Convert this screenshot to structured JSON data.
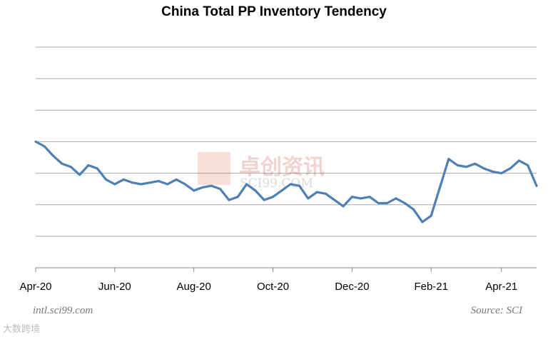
{
  "chart_data": {
    "type": "line",
    "title": "China Total PP Inventory Tendency",
    "xlabel": "",
    "ylabel": "",
    "ylim": [
      0,
      7
    ],
    "grid": true,
    "y_tick_labels_shown": false,
    "x_tick_labels": [
      "Apr-20",
      "Jun-20",
      "Aug-20",
      "Oct-20",
      "Dec-20",
      "Feb-21",
      "Apr-21"
    ],
    "x_tick_index": [
      0,
      9,
      18,
      27,
      36,
      45,
      53
    ],
    "series": [
      {
        "color": "#4e7fb5",
        "values": [
          4.0,
          3.85,
          3.55,
          3.3,
          3.2,
          2.95,
          3.25,
          3.15,
          2.8,
          2.65,
          2.8,
          2.7,
          2.65,
          2.7,
          2.75,
          2.65,
          2.8,
          2.65,
          2.45,
          2.55,
          2.6,
          2.5,
          2.15,
          2.25,
          2.65,
          2.45,
          2.15,
          2.25,
          2.45,
          2.65,
          2.6,
          2.2,
          2.4,
          2.35,
          2.15,
          1.95,
          2.25,
          2.2,
          2.25,
          2.05,
          2.05,
          2.2,
          2.05,
          1.85,
          1.45,
          1.65,
          2.55,
          3.45,
          3.25,
          3.2,
          3.3,
          3.15,
          3.05,
          3.0,
          3.15,
          3.4,
          3.25,
          2.6
        ]
      }
    ]
  },
  "watermark": {
    "cn": "卓创资讯",
    "en": "SCI99.COM"
  },
  "footer": {
    "left": "intl.sci99.com",
    "right": "Source: SCI"
  },
  "corner_logo": "大数跨境"
}
